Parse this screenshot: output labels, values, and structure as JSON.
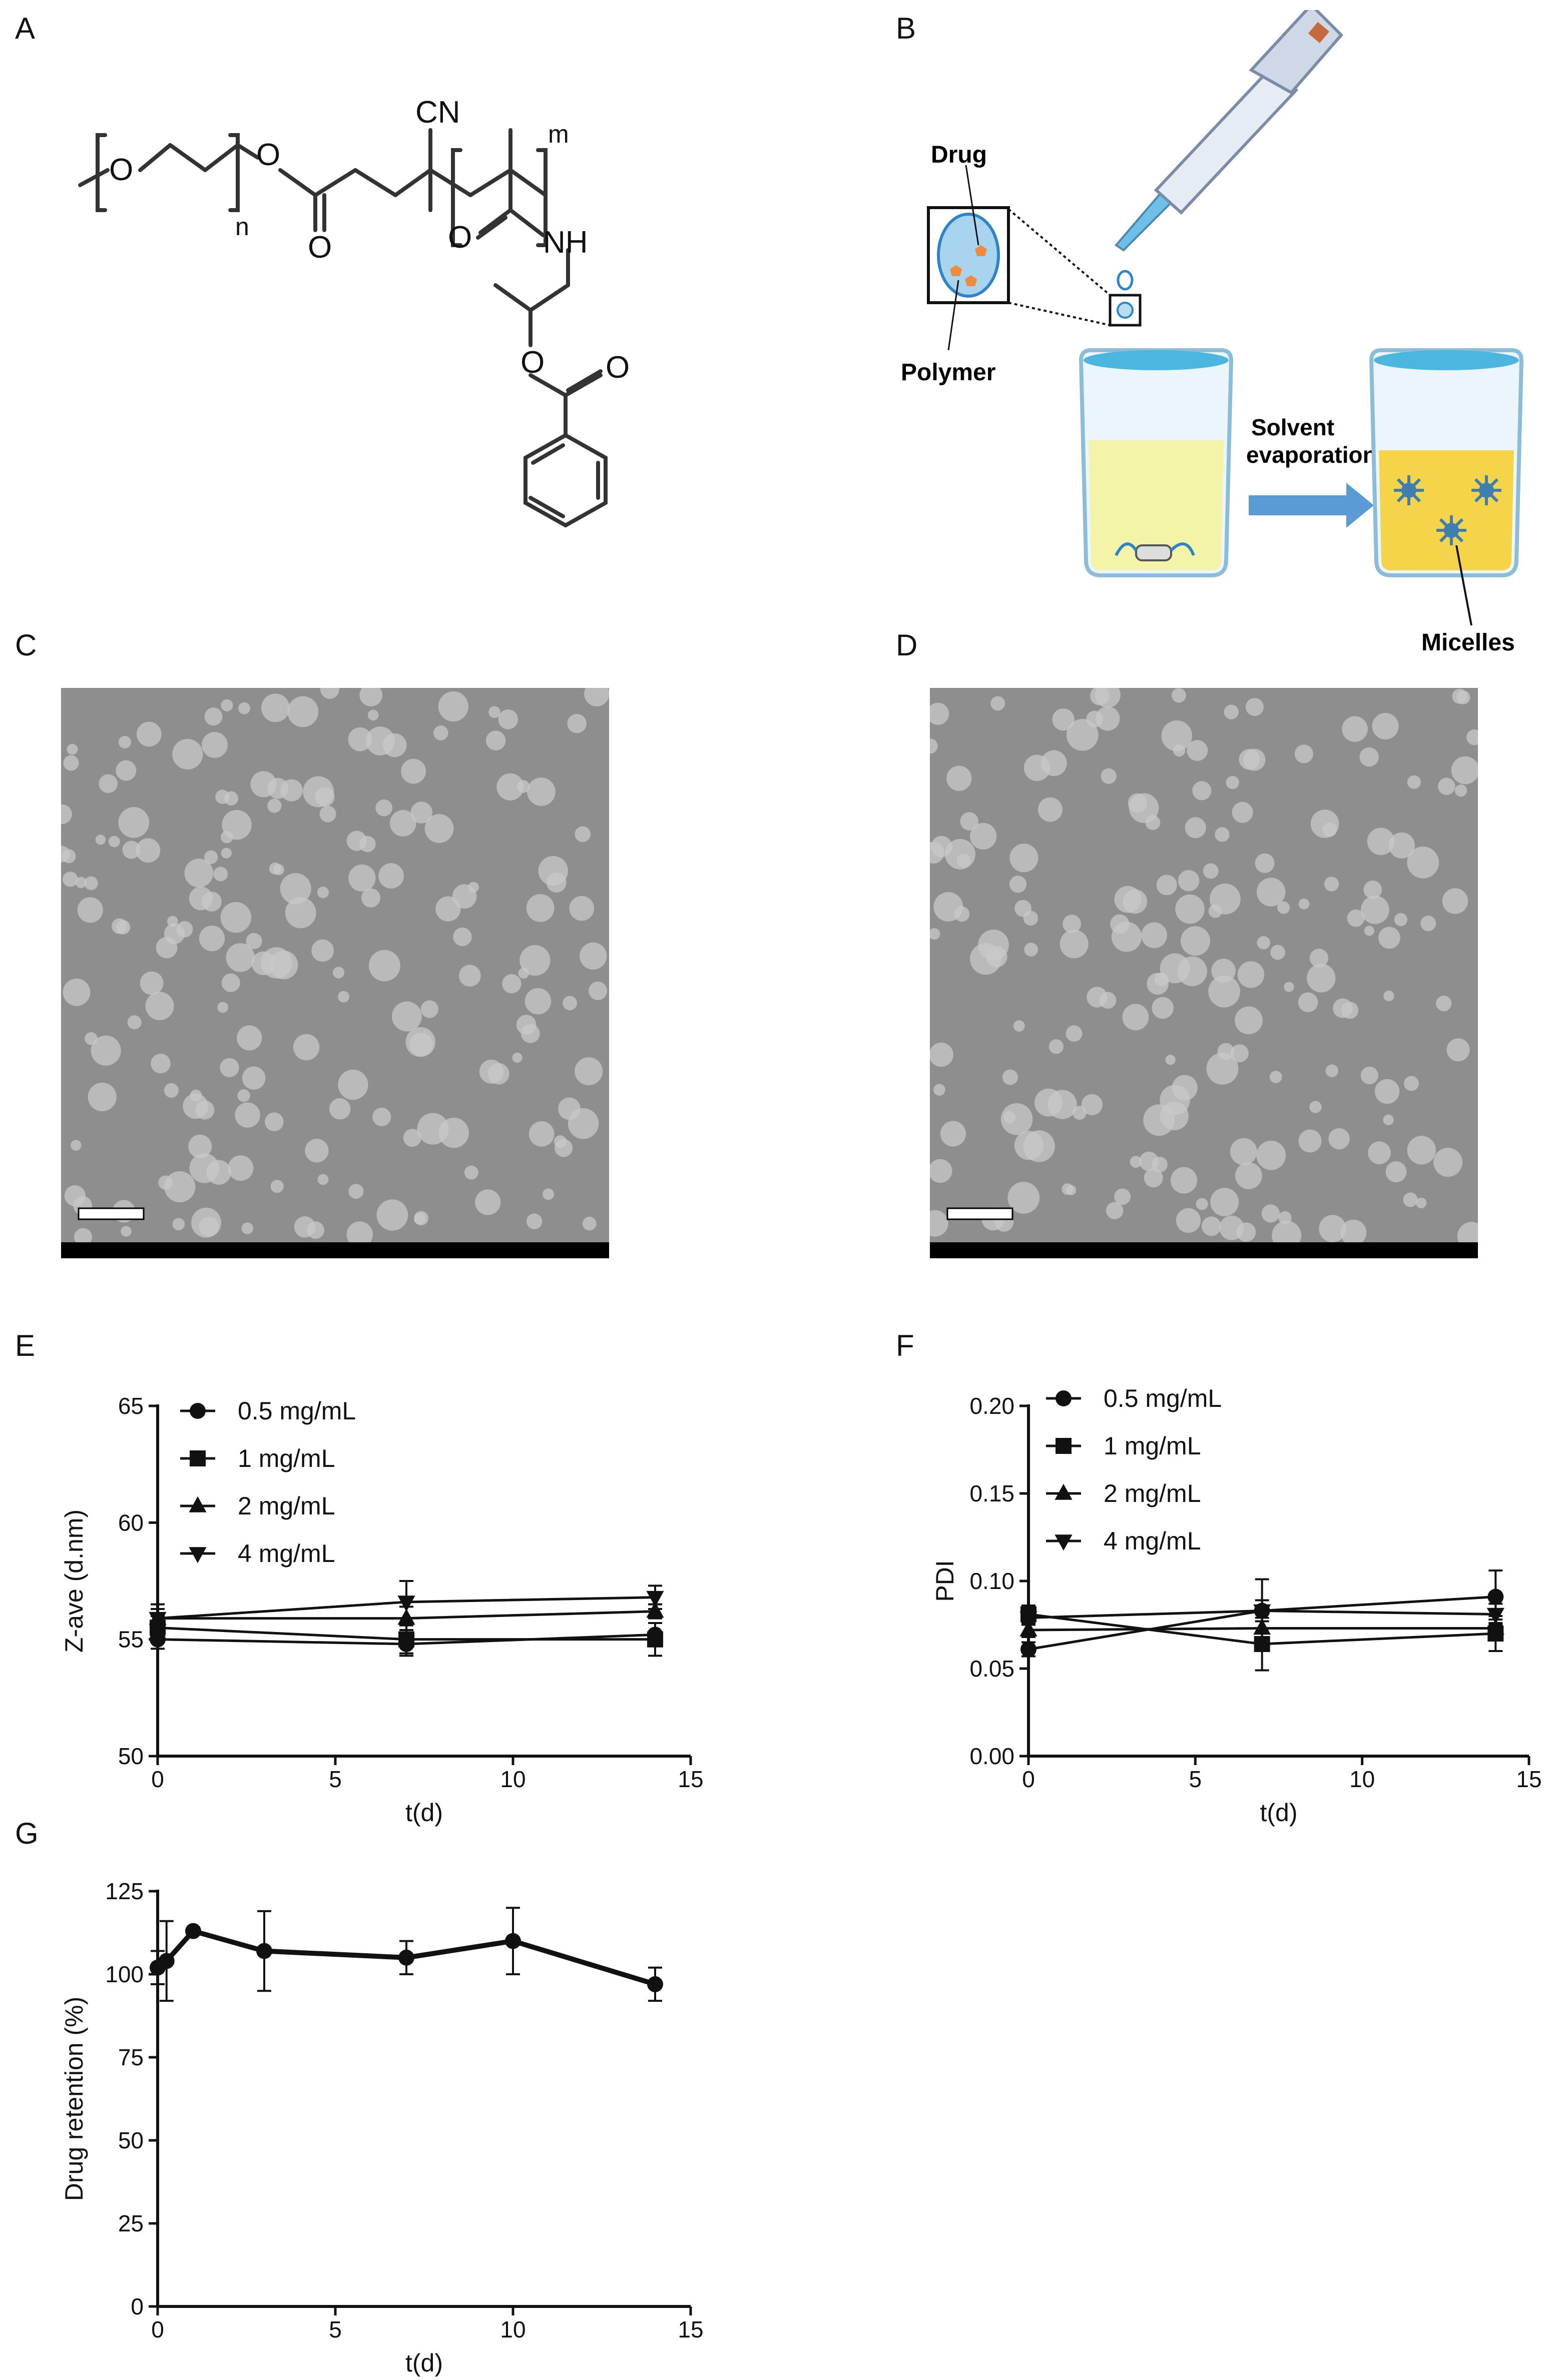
{
  "panels": {
    "A": "A",
    "B": "B",
    "C": "C",
    "D": "D",
    "E": "E",
    "F": "F",
    "G": "G"
  },
  "structure": {
    "sub_n": "n",
    "sub_m": "m",
    "cn": "CN",
    "nh": "NH",
    "o_atoms": [
      "O",
      "O",
      "O",
      "O",
      "O"
    ]
  },
  "scheme": {
    "drug": "Drug",
    "polymer": "Polymer",
    "solvent_evaporation_1": "Solvent",
    "solvent_evaporation_2": "evaporation",
    "micelles": "Micelles"
  },
  "charts": {
    "E": {
      "chart_data": {
        "type": "line",
        "xlabel": "t(d)",
        "ylabel": "Z-ave (d.nm)",
        "xlim": [
          0,
          15
        ],
        "ylim": [
          50,
          65
        ],
        "xticks": [
          0,
          5,
          10,
          15
        ],
        "yticks": [
          50,
          55,
          60,
          65
        ],
        "x": [
          0,
          7,
          14
        ],
        "series": [
          {
            "name": "0.5 mg/mL",
            "marker": "circle",
            "values": [
              55.0,
              54.8,
              55.2
            ],
            "err": [
              0.4,
              0.5,
              0.5
            ]
          },
          {
            "name": "1 mg/mL",
            "marker": "square",
            "values": [
              55.5,
              55.0,
              55.0
            ],
            "err": [
              0.5,
              0.6,
              0.7
            ]
          },
          {
            "name": "2 mg/mL",
            "marker": "triangle-up",
            "values": [
              55.9,
              55.9,
              56.2
            ],
            "err": [
              0.4,
              0.5,
              0.3
            ]
          },
          {
            "name": "4 mg/mL",
            "marker": "triangle-down",
            "values": [
              55.9,
              56.6,
              56.8
            ],
            "err": [
              0.6,
              0.9,
              0.5
            ]
          }
        ],
        "legend": "top-left"
      }
    },
    "F": {
      "chart_data": {
        "type": "line",
        "xlabel": "t(d)",
        "ylabel": "PDI",
        "xlim": [
          0,
          15
        ],
        "ylim": [
          0.0,
          0.2
        ],
        "xticks": [
          0,
          5,
          10,
          15
        ],
        "yticks": [
          "0.00",
          "0.05",
          "0.10",
          "0.15",
          "0.20"
        ],
        "x": [
          0,
          7,
          14
        ],
        "series": [
          {
            "name": "0.5 mg/mL",
            "marker": "circle",
            "values": [
              0.061,
              0.083,
              0.091
            ],
            "err": [
              0.004,
              0.006,
              0.015
            ]
          },
          {
            "name": "1 mg/mL",
            "marker": "square",
            "values": [
              0.081,
              0.064,
              0.07
            ],
            "err": [
              0.005,
              0.015,
              0.01
            ]
          },
          {
            "name": "2 mg/mL",
            "marker": "triangle-up",
            "values": [
              0.072,
              0.073,
              0.073
            ],
            "err": [
              0.004,
              0.008,
              0.005
            ]
          },
          {
            "name": "4 mg/mL",
            "marker": "triangle-down",
            "values": [
              0.079,
              0.083,
              0.081
            ],
            "err": [
              0.004,
              0.018,
              0.006
            ]
          }
        ],
        "legend": "top-left"
      }
    },
    "G": {
      "chart_data": {
        "type": "line",
        "xlabel": "t(d)",
        "ylabel": "Drug retention (%)",
        "xlim": [
          0,
          15
        ],
        "ylim": [
          0,
          125
        ],
        "xticks": [
          0,
          5,
          10,
          15
        ],
        "yticks": [
          0,
          25,
          50,
          75,
          100,
          125
        ],
        "x": [
          0,
          0.25,
          1,
          3,
          7,
          10,
          14
        ],
        "series": [
          {
            "values": [
              102,
              104,
              113,
              107,
              105,
              110,
              97
            ],
            "err": [
              5,
              12,
              1,
              12,
              5,
              10,
              5
            ]
          }
        ],
        "legend": "none"
      }
    }
  },
  "colors": {
    "beaker_liquid_left": "#f4f4a8",
    "beaker_liquid_right": "#f6d44a",
    "beaker_water_top": "#4bb6e0",
    "arrow": "#5b9bd5",
    "micelle": "#3d7fb1",
    "drug": "#f08a3c",
    "tem_background": "#8e8e8e"
  }
}
